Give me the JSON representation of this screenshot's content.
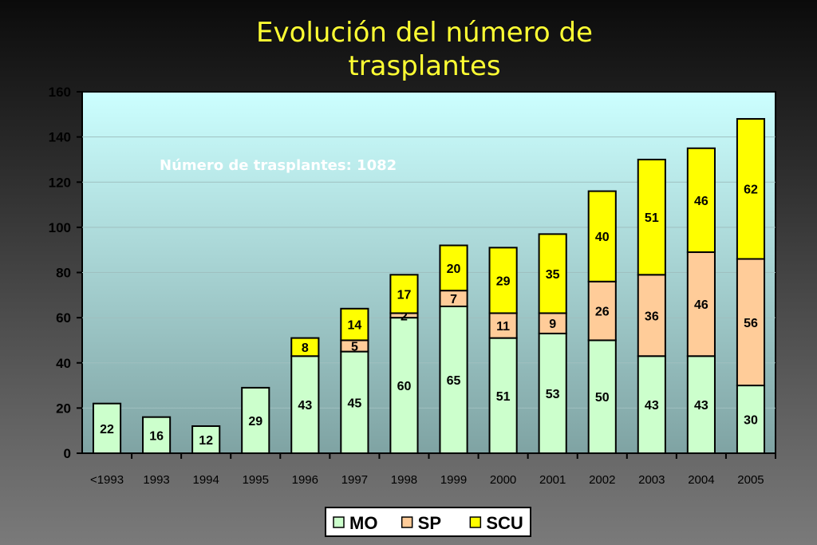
{
  "title_lines": [
    "Evolución del número de",
    "trasplantes"
  ],
  "colors": {
    "MO": "#ccffcc",
    "SP": "#ffcc99",
    "SCU": "#ffff00",
    "title": "#ffff33",
    "annotation": "#ffffff",
    "plot_bg_top": "#ccffff",
    "plot_bg_bottom": "#7fa3a3"
  },
  "chart_data": {
    "type": "bar",
    "stacked": true,
    "title": "Evolución del número de trasplantes",
    "xlabel": "",
    "ylabel": "",
    "ylim": [
      0,
      160
    ],
    "yticks": [
      0,
      20,
      40,
      60,
      80,
      100,
      120,
      140,
      160
    ],
    "categories": [
      "<1993",
      "1993",
      "1994",
      "1995",
      "1996",
      "1997",
      "1998",
      "1999",
      "2000",
      "2001",
      "2002",
      "2003",
      "2004",
      "2005"
    ],
    "series": [
      {
        "name": "MO",
        "values": [
          22,
          16,
          12,
          29,
          43,
          45,
          60,
          65,
          51,
          53,
          50,
          43,
          43,
          30
        ]
      },
      {
        "name": "SP",
        "values": [
          0,
          0,
          0,
          0,
          0,
          5,
          2,
          7,
          11,
          9,
          26,
          36,
          46,
          56
        ]
      },
      {
        "name": "SCU",
        "values": [
          0,
          0,
          0,
          0,
          8,
          14,
          17,
          20,
          29,
          35,
          40,
          51,
          46,
          62
        ]
      }
    ],
    "annotation": "Número de trasplantes: 1082",
    "legend_position": "bottom",
    "grid": true
  }
}
